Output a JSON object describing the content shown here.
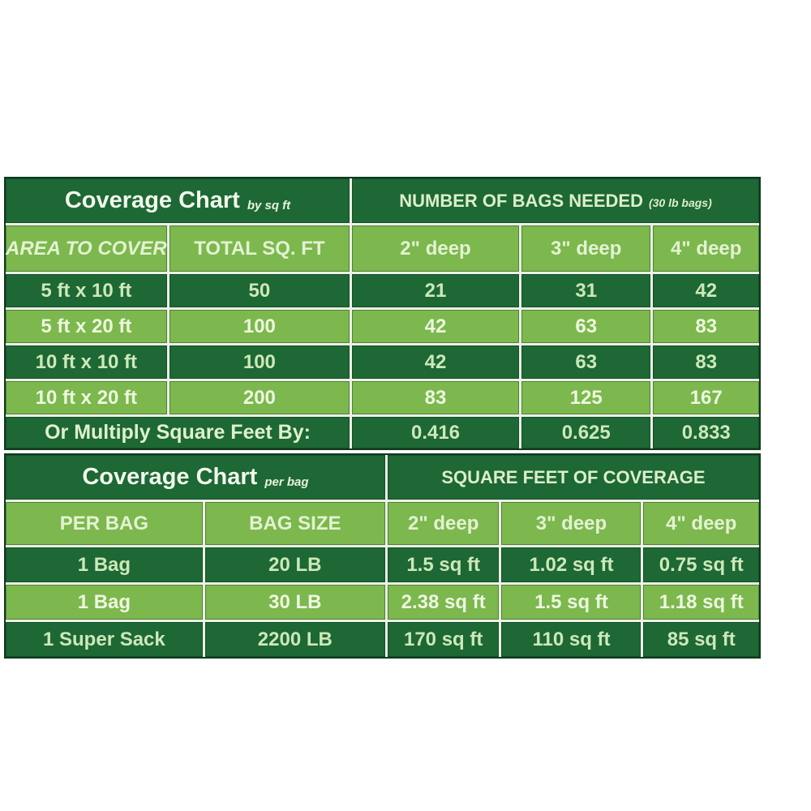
{
  "colors": {
    "dark_green": "#1d6835",
    "light_green": "#7cb84d",
    "grout_white": "#edf1e8",
    "outline_dark": "#0e3a1e",
    "title_text": "#f2f8ec",
    "dark_cell_text": "#cde8b8",
    "light_cell_text": "#edf7e0"
  },
  "chart_data": [
    {
      "type": "table",
      "title": "Coverage Chart",
      "title_note": "by sq ft",
      "banner": "NUMBER OF BAGS NEEDED",
      "banner_note": "(30 lb bags)",
      "columns": [
        "AREA TO COVER",
        "TOTAL SQ. FT",
        "2\" deep",
        "3\" deep",
        "4\" deep"
      ],
      "rows": [
        [
          "5 ft x 10 ft",
          "50",
          "21",
          "31",
          "42"
        ],
        [
          "5 ft x 20 ft",
          "100",
          "42",
          "63",
          "83"
        ],
        [
          "10 ft x 10 ft",
          "100",
          "42",
          "63",
          "83"
        ],
        [
          "10 ft x 20 ft",
          "200",
          "83",
          "125",
          "167"
        ]
      ],
      "footer_label": "Or Multiply Square Feet By:",
      "footer_values": [
        "0.416",
        "0.625",
        "0.833"
      ]
    },
    {
      "type": "table",
      "title": "Coverage Chart",
      "title_note": "per bag",
      "banner": "SQUARE FEET OF COVERAGE",
      "columns": [
        "PER BAG",
        "BAG SIZE",
        "2\" deep",
        "3\" deep",
        "4\" deep"
      ],
      "rows": [
        [
          "1 Bag",
          "20 LB",
          "1.5 sq ft",
          "1.02 sq ft",
          "0.75 sq ft"
        ],
        [
          "1 Bag",
          "30 LB",
          "2.38 sq ft",
          "1.5 sq ft",
          "1.18 sq ft"
        ],
        [
          "1 Super Sack",
          "2200 LB",
          "170 sq ft",
          "110 sq ft",
          "85 sq ft"
        ]
      ]
    }
  ]
}
